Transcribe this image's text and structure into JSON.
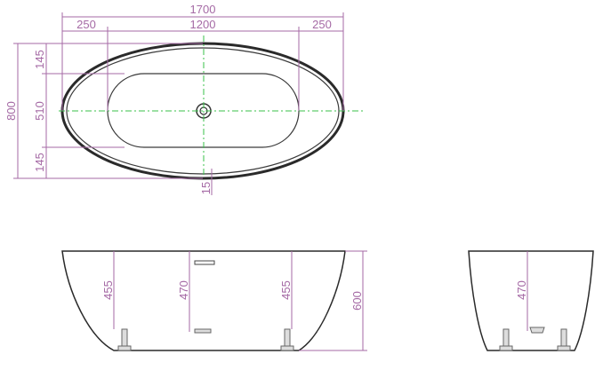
{
  "top_view": {
    "overall_length": "1700",
    "end_offset_left": "250",
    "basin_length": "1200",
    "end_offset_right": "250",
    "overall_width": "800",
    "rim_top": "145",
    "basin_width": "510",
    "rim_bottom": "145",
    "drain_offset": "15"
  },
  "front_view": {
    "left_depth": "455",
    "center_depth": "470",
    "right_depth": "455",
    "overall_height": "600"
  },
  "side_view": {
    "depth": "470"
  },
  "colors": {
    "dimension": "#a56aa5",
    "centerline": "#39c24a",
    "outline": "#2a2a2a"
  }
}
